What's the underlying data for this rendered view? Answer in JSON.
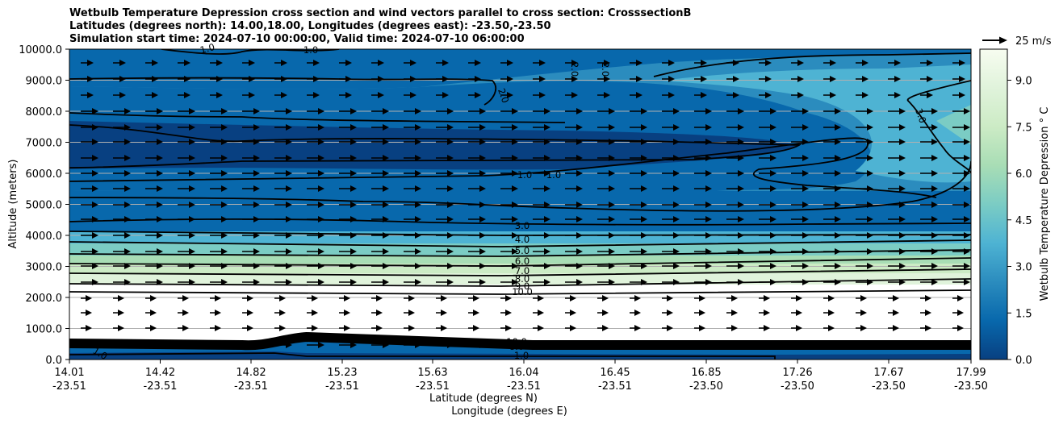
{
  "chart_data": {
    "type": "heatmap",
    "title_lines": [
      "Wetbulb Temperature Depression cross section and wind vectors parallel to cross section: CrosssectionB",
      "Latitudes (degrees north): 14.00,18.00, Longitudes (degrees east): -23.50,-23.50",
      "Simulation start time: 2024-07-10 00:00:00, Valid time: 2024-07-10 06:00:00"
    ],
    "ylabel": "Altitude (meters)",
    "xlabel_lines": [
      "Latitude (degrees N)",
      "Longitude (degrees E)"
    ],
    "ylim": [
      0,
      10000
    ],
    "y_ticks": [
      "0.0",
      "1000.0",
      "2000.0",
      "3000.0",
      "4000.0",
      "5000.0",
      "6000.0",
      "7000.0",
      "8000.0",
      "9000.0",
      "10000.0"
    ],
    "x_ticks": [
      {
        "lat": "14.01",
        "lon": "-23.51"
      },
      {
        "lat": "14.42",
        "lon": "-23.51"
      },
      {
        "lat": "14.82",
        "lon": "-23.51"
      },
      {
        "lat": "15.23",
        "lon": "-23.51"
      },
      {
        "lat": "15.63",
        "lon": "-23.51"
      },
      {
        "lat": "16.04",
        "lon": "-23.51"
      },
      {
        "lat": "16.45",
        "lon": "-23.51"
      },
      {
        "lat": "16.85",
        "lon": "-23.50"
      },
      {
        "lat": "17.26",
        "lon": "-23.50"
      },
      {
        "lat": "17.67",
        "lon": "-23.50"
      },
      {
        "lat": "17.99",
        "lon": "-23.50"
      }
    ],
    "colorbar": {
      "label": "Wetbulb Temperature Depression ° C",
      "range": [
        0,
        10
      ],
      "ticks": [
        "0.0",
        "1.5",
        "3.0",
        "4.5",
        "6.0",
        "7.5",
        "9.0"
      ],
      "colormap": [
        "#084081",
        "#0868ac",
        "#2b8cbe",
        "#4eb3d3",
        "#7bccc4",
        "#a8ddb5",
        "#ccebc5",
        "#e0f3db",
        "#f7fcf0"
      ]
    },
    "contour_labels": [
      "1.0",
      "2.0",
      "3.0",
      "4.0",
      "5.0",
      "6.0",
      "7.0",
      "8.0",
      "9.0",
      "10.0"
    ],
    "wind_reference": "25 m/s",
    "grid": true
  }
}
